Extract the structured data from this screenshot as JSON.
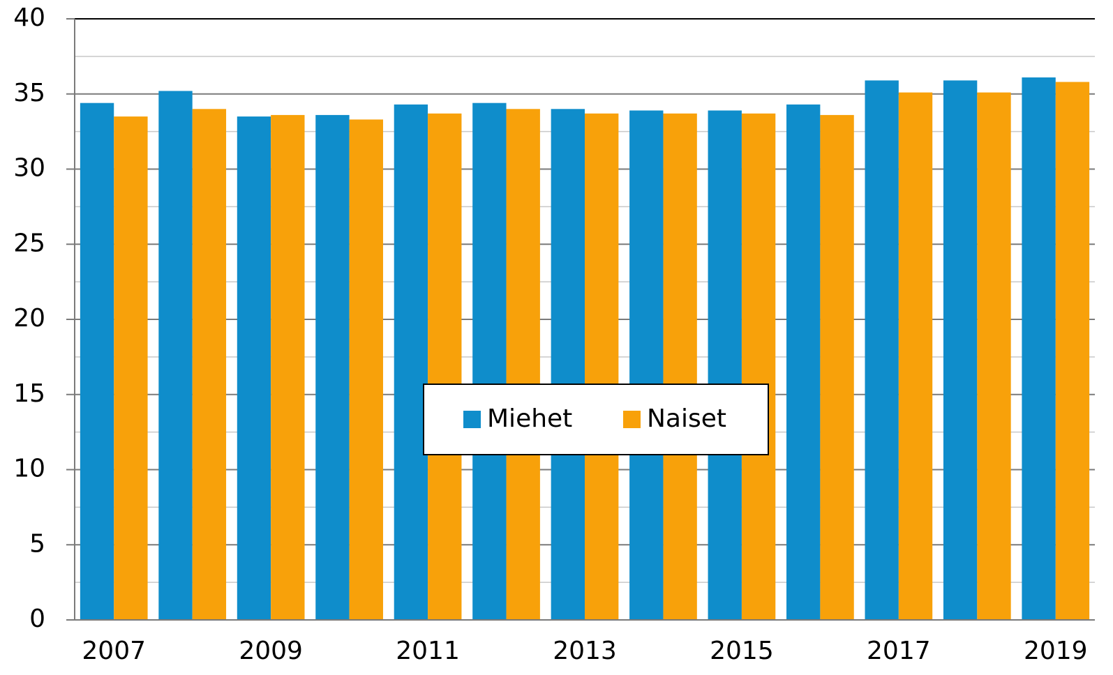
{
  "chart_data": {
    "type": "bar",
    "categories": [
      "2007",
      null,
      "2009",
      null,
      "2011",
      null,
      "2013",
      null,
      "2015",
      null,
      "2017",
      null,
      "2019"
    ],
    "series": [
      {
        "name": "Miehet",
        "color": "#0f8dcb",
        "values": [
          34.4,
          35.2,
          33.5,
          33.6,
          34.3,
          34.4,
          34.0,
          33.9,
          33.9,
          34.3,
          35.9,
          35.9,
          36.1
        ]
      },
      {
        "name": "Naiset",
        "color": "#f8a10a",
        "values": [
          33.5,
          34.0,
          33.6,
          33.3,
          33.7,
          34.0,
          33.7,
          33.7,
          33.7,
          33.6,
          35.1,
          35.1,
          35.8
        ]
      }
    ],
    "ylim": [
      0,
      40
    ],
    "yticks": [
      0,
      5,
      10,
      15,
      20,
      25,
      30,
      35,
      40
    ],
    "yminorticks": [
      2.5,
      7.5,
      12.5,
      17.5,
      22.5,
      27.5,
      32.5,
      37.5
    ],
    "grid": true,
    "legend": "center"
  }
}
